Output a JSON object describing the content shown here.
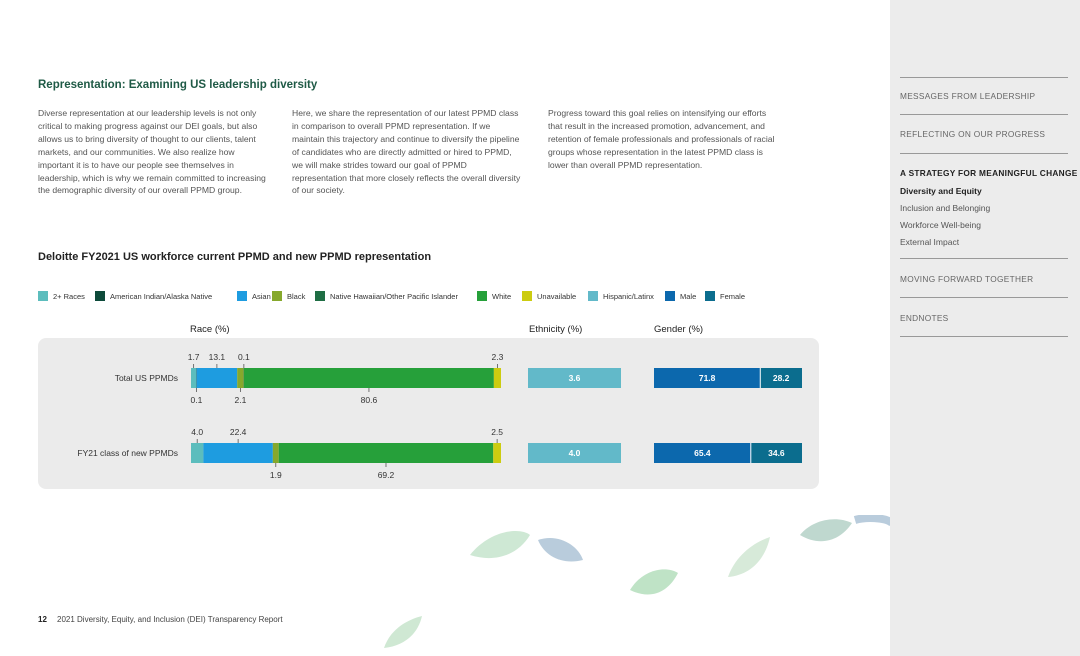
{
  "page": {
    "section_title": "Representation: Examining US leadership diversity",
    "paragraphs": [
      "Diverse representation at our leadership levels is not only critical to making progress against our DEI goals, but also allows us to bring diversity of thought to our clients, talent markets, and our communities. We also realize how important it is to have our people see themselves in leadership, which is why we remain committed to increasing the demographic diversity of our overall PPMD group.",
      "Here, we share the representation of our latest PPMD class in comparison to overall PPMD representation. If we maintain this trajectory and continue to diversify the pipeline of candidates who are directly admitted or hired to PPMD, we will make strides toward our goal of PPMD representation that more closely reflects the overall diversity of our society.",
      "Progress toward this goal relies on intensifying our efforts that result in the increased promotion, advancement, and retention of female professionals and professionals of racial groups whose representation in the latest PPMD class is lower than overall PPMD representation."
    ],
    "footer_page_number": "12",
    "footer_text": "2021 Diversity, Equity, and Inclusion (DEI) Transparency Report"
  },
  "nav": {
    "items": [
      {
        "label": "MESSAGES FROM LEADERSHIP",
        "active": false
      },
      {
        "label": "REFLECTING ON OUR PROGRESS",
        "active": false
      },
      {
        "label": "A STRATEGY FOR MEANINGFUL CHANGE",
        "active": true
      },
      {
        "label": "MOVING FORWARD TOGETHER",
        "active": false
      },
      {
        "label": "ENDNOTES",
        "active": false
      }
    ],
    "subitems": [
      {
        "label": "Diversity and Equity",
        "active": true
      },
      {
        "label": "Inclusion and Belonging",
        "active": false
      },
      {
        "label": "Workforce Well-being",
        "active": false
      },
      {
        "label": "External Impact",
        "active": false
      }
    ]
  },
  "chart_data": {
    "type": "bar",
    "stacked": true,
    "orientation": "horizontal",
    "title": "Deloitte FY2021 US workforce current PPMD and new PPMD representation",
    "legend": [
      {
        "name": "2+ Races",
        "color": "#5cbdbd"
      },
      {
        "name": "American Indian/Alaska Native",
        "color": "#0d4a3a"
      },
      {
        "name": "Asian",
        "color": "#1e9ce0"
      },
      {
        "name": "Black",
        "color": "#86a82c"
      },
      {
        "name": "Native Hawaiian/Other Pacific Islander",
        "color": "#1f6e44"
      },
      {
        "name": "White",
        "color": "#26a03a"
      },
      {
        "name": "Unavailable",
        "color": "#cccc10"
      },
      {
        "name": "Hispanic/Latinx",
        "color": "#62b9c9"
      },
      {
        "name": "Male",
        "color": "#0c68ad"
      },
      {
        "name": "Female",
        "color": "#0b6d8e"
      }
    ],
    "panels": {
      "race": "Race (%)",
      "ethnicity": "Ethnicity (%)",
      "gender": "Gender (%)"
    },
    "categories": [
      "Total US PPMDs",
      "FY21 class of new PPMDs"
    ],
    "race_series": [
      {
        "name": "2+ Races",
        "values": [
          1.7,
          4.0
        ],
        "color": "#5cbdbd"
      },
      {
        "name": "American Indian/Alaska Native",
        "values": [
          0.1,
          0.0
        ],
        "color": "#0d4a3a"
      },
      {
        "name": "Asian",
        "values": [
          13.1,
          22.4
        ],
        "color": "#1e9ce0"
      },
      {
        "name": "Black",
        "values": [
          2.1,
          1.9
        ],
        "color": "#86a82c"
      },
      {
        "name": "Native Hawaiian/Other Pacific Islander",
        "values": [
          0.1,
          0.0
        ],
        "color": "#1f6e44"
      },
      {
        "name": "White",
        "values": [
          80.6,
          69.2
        ],
        "color": "#26a03a"
      },
      {
        "name": "Unavailable",
        "values": [
          2.3,
          2.5
        ],
        "color": "#cccc10"
      }
    ],
    "race_labels": [
      {
        "above": [
          "1.7",
          "13.1",
          "0.1",
          "2.3"
        ],
        "below": [
          "0.1",
          "2.1",
          "80.6"
        ]
      },
      {
        "above": [
          "4.0",
          "22.4",
          "2.5"
        ],
        "below": [
          "1.9",
          "69.2"
        ]
      }
    ],
    "ethnicity": [
      {
        "name": "Hispanic/Latinx",
        "values": [
          3.6,
          4.0
        ],
        "labels": [
          "3.6",
          "4.0"
        ],
        "color": "#62b9c9"
      }
    ],
    "gender": [
      {
        "name": "Male",
        "values": [
          71.8,
          65.4
        ],
        "labels": [
          "71.8",
          "65.4"
        ],
        "color": "#0c68ad"
      },
      {
        "name": "Female",
        "values": [
          28.2,
          34.6
        ],
        "labels": [
          "28.2",
          "34.6"
        ],
        "color": "#0b6d8e"
      }
    ]
  }
}
